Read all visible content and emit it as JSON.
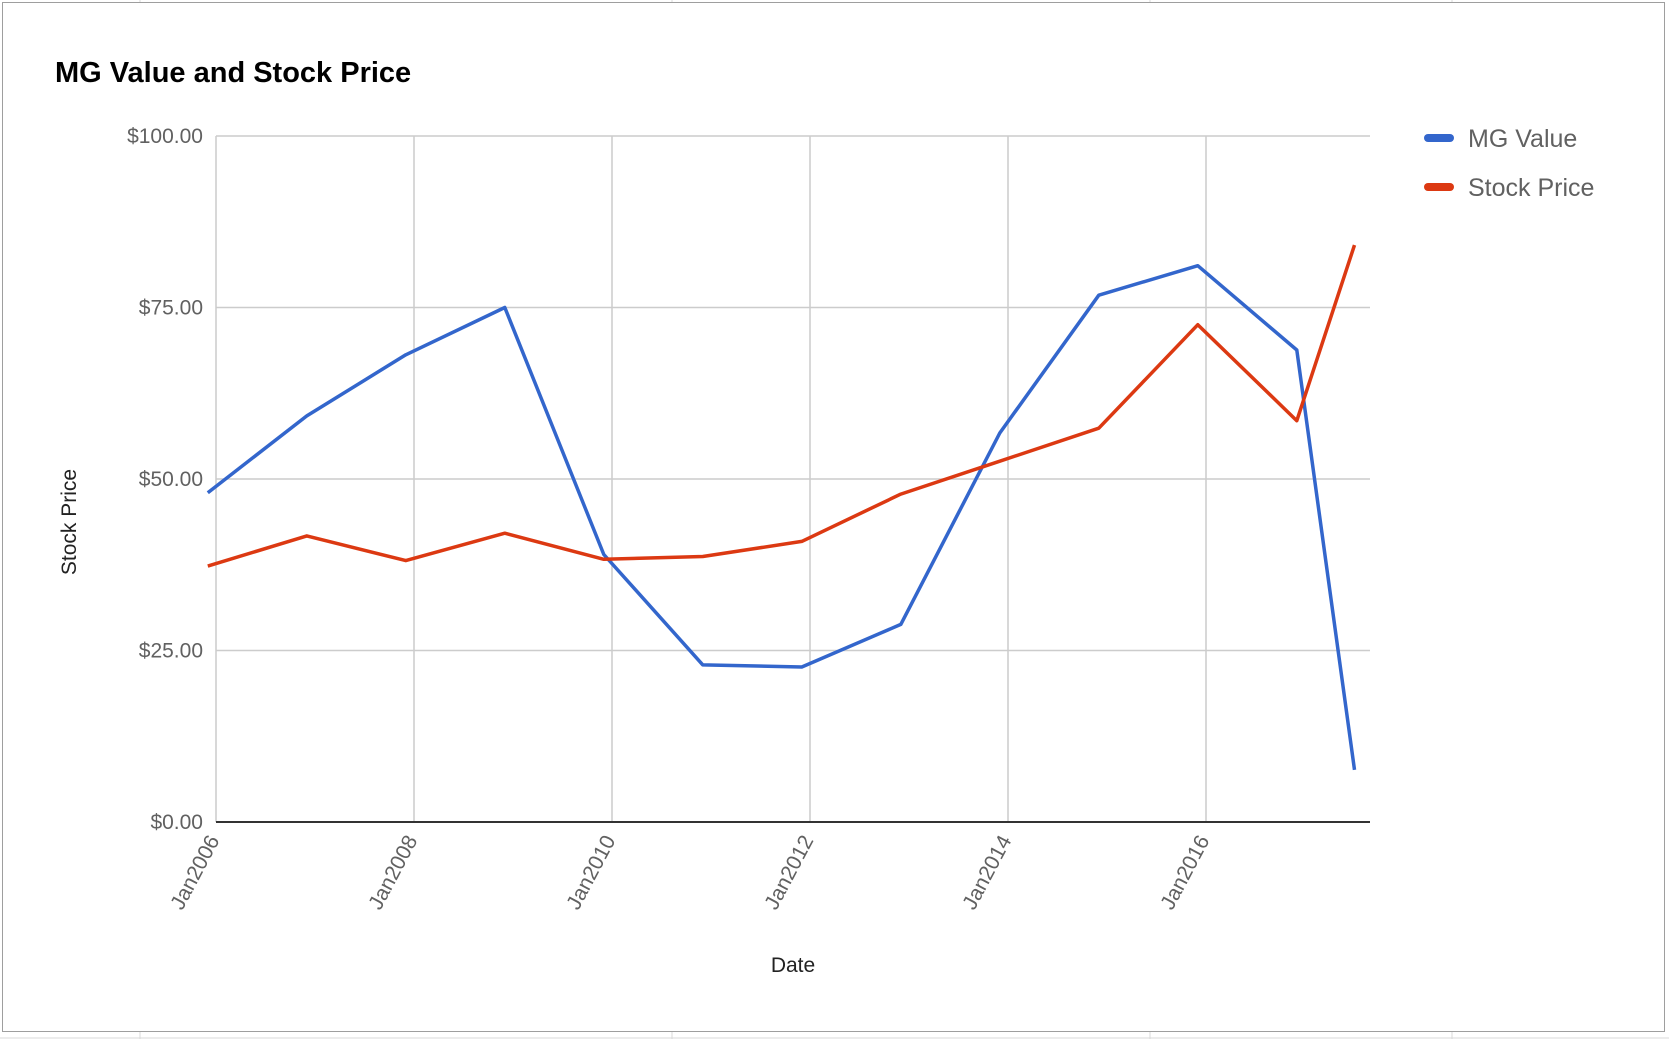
{
  "chart_data": {
    "type": "line",
    "title": "MG Value and Stock Price",
    "xlabel": "Date",
    "ylabel": "Stock Price",
    "x_ticks": [
      "Jan2006",
      "Jan2008",
      "Jan2010",
      "Jan2012",
      "Jan2014",
      "Jan2016"
    ],
    "y_ticks": [
      "$0.00",
      "$25.00",
      "$50.00",
      "$75.00",
      "$100.00"
    ],
    "ylim": [
      0,
      100
    ],
    "xlim": [
      "2006-01",
      "2017-07"
    ],
    "grid": true,
    "legend_position": "right",
    "series": [
      {
        "name": "MG Value",
        "color": "#3366cc",
        "points": [
          {
            "x": "2005-12",
            "y": 48
          },
          {
            "x": "2006-12",
            "y": 59.2
          },
          {
            "x": "2007-12",
            "y": 68.1
          },
          {
            "x": "2008-12",
            "y": 75
          },
          {
            "x": "2009-12",
            "y": 39
          },
          {
            "x": "2010-12",
            "y": 22.9
          },
          {
            "x": "2011-12",
            "y": 22.6
          },
          {
            "x": "2012-12",
            "y": 28.8
          },
          {
            "x": "2013-12",
            "y": 56.7
          },
          {
            "x": "2014-12",
            "y": 76.8
          },
          {
            "x": "2015-12",
            "y": 81.1
          },
          {
            "x": "2016-12",
            "y": 68.8
          },
          {
            "x": "2017-07",
            "y": 7.6
          }
        ]
      },
      {
        "name": "Stock Price",
        "color": "#dc3912",
        "points": [
          {
            "x": "2005-12",
            "y": 37.3
          },
          {
            "x": "2006-12",
            "y": 41.7
          },
          {
            "x": "2007-12",
            "y": 38.1
          },
          {
            "x": "2008-12",
            "y": 42.1
          },
          {
            "x": "2009-12",
            "y": 38.3
          },
          {
            "x": "2010-12",
            "y": 38.7
          },
          {
            "x": "2011-12",
            "y": 40.9
          },
          {
            "x": "2012-12",
            "y": 47.8
          },
          {
            "x": "2013-12",
            "y": 52.6
          },
          {
            "x": "2014-12",
            "y": 57.4
          },
          {
            "x": "2015-12",
            "y": 72.5
          },
          {
            "x": "2016-12",
            "y": 58.5
          },
          {
            "x": "2017-07",
            "y": 84.1
          }
        ]
      }
    ]
  }
}
